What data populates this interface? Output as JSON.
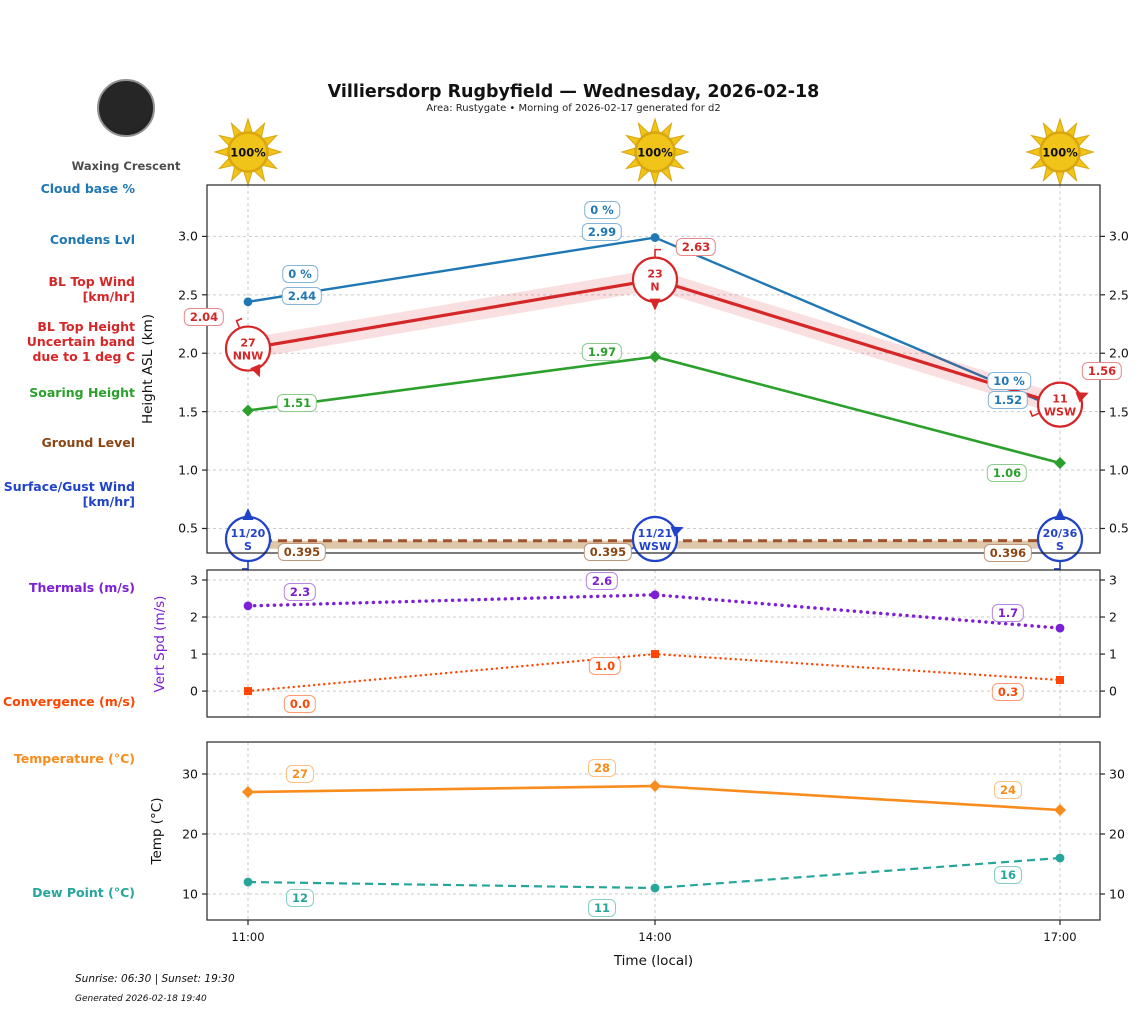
{
  "header": {
    "title": "Villiersdorp Rugbyfield — Wednesday, 2026-02-18",
    "subtitle": "Area: Rustygate • Morning of 2026-02-17 generated for d2"
  },
  "moon": {
    "phase": "Waxing Crescent"
  },
  "suns": {
    "percent_labels": [
      "100%",
      "100%",
      "100%"
    ]
  },
  "colors": {
    "condens_blue": "#1f77b4",
    "bl_top_red": "#d62728",
    "bl_band_pink": "rgba(214,39,40,0.15)",
    "soaring_green": "#2ca02c",
    "ground_brown": "#8B4513",
    "ground_line": "#A0522D",
    "ground_fill": "#D2B48C",
    "surface_blue": "#2143c8",
    "thermals_purple": "#7c1fd6",
    "convergence_orangered": "#ff4500",
    "temperature_orange": "#f88c1d",
    "dewpoint_teal": "#26a69a",
    "sun_gold": "#f0c419",
    "sun_edge": "#d9a60f"
  },
  "legend": [
    {
      "id": "cloud-base",
      "lines": [
        "Cloud base %"
      ],
      "color": "#1f77b4"
    },
    {
      "id": "condens-lvl",
      "lines": [
        "Condens Lvl"
      ],
      "color": "#1f77b4"
    },
    {
      "id": "bl-top-wind",
      "lines": [
        "BL Top Wind",
        "[km/hr]"
      ],
      "color": "#d62728"
    },
    {
      "id": "bl-top-height",
      "lines": [
        "BL Top Height",
        "Uncertain band",
        "due to 1 deg C"
      ],
      "color": "#d62728"
    },
    {
      "id": "soaring-height",
      "lines": [
        "Soaring Height"
      ],
      "color": "#2ca02c"
    },
    {
      "id": "ground-level",
      "lines": [
        "Ground Level"
      ],
      "color": "#8B4513"
    },
    {
      "id": "surface-wind",
      "lines": [
        "Surface/Gust Wind",
        "[km/hr]"
      ],
      "color": "#2143c8"
    },
    {
      "id": "thermals",
      "lines": [
        "Thermals (m/s)"
      ],
      "color": "#7c1fd6"
    },
    {
      "id": "convergence",
      "lines": [
        "Convergence (m/s)"
      ],
      "color": "#ff4500"
    },
    {
      "id": "temperature",
      "lines": [
        "Temperature (°C)"
      ],
      "color": "#f88c1d"
    },
    {
      "id": "dew-point",
      "lines": [
        "Dew Point (°C)"
      ],
      "color": "#26a69a"
    }
  ],
  "chart_data": [
    {
      "id": "height",
      "type": "line",
      "x": [
        "11:00",
        "14:00",
        "17:00"
      ],
      "ylabel": "Height ASL (km)",
      "yticks": [
        "3.0",
        "2.5",
        "2.0",
        "1.5",
        "1.0",
        "0.5"
      ],
      "ylim": [
        0.29,
        3.44
      ],
      "grid": true,
      "legend_position": "left margin",
      "series": [
        {
          "id": "condens-lvl",
          "name": "Condens Lvl",
          "color": "#1f77b4",
          "style": "solid",
          "marker": "circle",
          "values": [
            2.44,
            2.99,
            1.52
          ],
          "point_labels": [
            "2.44",
            "2.99",
            "1.52"
          ],
          "cloudbase_labels": [
            "0 %",
            "0 %",
            "10 %"
          ]
        },
        {
          "id": "bl-top",
          "name": "BL Top Height",
          "color": "#d62728",
          "style": "solid",
          "values": [
            2.04,
            2.63,
            1.56
          ],
          "point_labels": [
            "2.04",
            "2.63",
            "1.56"
          ],
          "uncertainty_band": 0.09,
          "wind": [
            {
              "speed": "27",
              "dir": "NNW"
            },
            {
              "speed": "23",
              "dir": "N"
            },
            {
              "speed": "11",
              "dir": "WSW"
            }
          ]
        },
        {
          "id": "soaring",
          "name": "Soaring Height",
          "color": "#2ca02c",
          "style": "solid",
          "marker": "diamond",
          "values": [
            1.51,
            1.97,
            1.06
          ],
          "point_labels": [
            "1.51",
            "1.97",
            "1.06"
          ]
        },
        {
          "id": "ground",
          "name": "Ground Level",
          "color": "#8B4513",
          "line_color": "#A0522D",
          "style": "dashed",
          "fill_below": "#D2B48C",
          "values": [
            0.395,
            0.395,
            0.396
          ],
          "point_labels": [
            "0.395",
            "0.395",
            "0.396"
          ]
        },
        {
          "id": "surface-wind",
          "name": "Surface/Gust Wind",
          "color": "#2143c8",
          "values": [
            0.41,
            0.41,
            0.41
          ],
          "wind": [
            {
              "speed": "11/20",
              "dir": "S"
            },
            {
              "speed": "11/21",
              "dir": "WSW"
            },
            {
              "speed": "20/36",
              "dir": "S"
            }
          ]
        }
      ]
    },
    {
      "id": "vertspd",
      "type": "line",
      "x": [
        "11:00",
        "14:00",
        "17:00"
      ],
      "ylabel": "Vert Spd (m/s)",
      "ylabel_color": "#7c1fd6",
      "yticks": [
        "3",
        "2",
        "1",
        "0"
      ],
      "ylim": [
        -0.7,
        3.27
      ],
      "grid": true,
      "series": [
        {
          "id": "thermals",
          "name": "Thermals (m/s)",
          "color": "#7c1fd6",
          "style": "dotted",
          "marker": "circle",
          "values": [
            2.3,
            2.6,
            1.7
          ],
          "point_labels": [
            "2.3",
            "2.6",
            "1.7"
          ]
        },
        {
          "id": "convergence",
          "name": "Convergence (m/s)",
          "color": "#ff4500",
          "style": "dotted",
          "marker": "square",
          "values": [
            0.0,
            1.0,
            0.3
          ],
          "point_labels": [
            "0.0",
            "1.0",
            "0.3"
          ]
        }
      ]
    },
    {
      "id": "temp",
      "type": "line",
      "x": [
        "11:00",
        "14:00",
        "17:00"
      ],
      "ylabel": "Temp (°C)",
      "yticks": [
        "30",
        "20",
        "10"
      ],
      "ylim": [
        5.67,
        35.33
      ],
      "grid": true,
      "series": [
        {
          "id": "temperature",
          "name": "Temperature (°C)",
          "color": "#f88c1d",
          "style": "solid",
          "marker": "diamond",
          "values": [
            27,
            28,
            24
          ],
          "point_labels": [
            "27",
            "28",
            "24"
          ]
        },
        {
          "id": "dew-point",
          "name": "Dew Point (°C)",
          "color": "#26a69a",
          "style": "dashed",
          "marker": "circle",
          "values": [
            12,
            11,
            16
          ],
          "point_labels": [
            "12",
            "11",
            "16"
          ]
        }
      ]
    }
  ],
  "xaxis": {
    "ticks": [
      "11:00",
      "14:00",
      "17:00"
    ],
    "label": "Time (local)"
  },
  "footer": {
    "sun_times": "Sunrise: 06:30 | Sunset: 19:30",
    "generated": "Generated 2026-02-18 19:40"
  }
}
